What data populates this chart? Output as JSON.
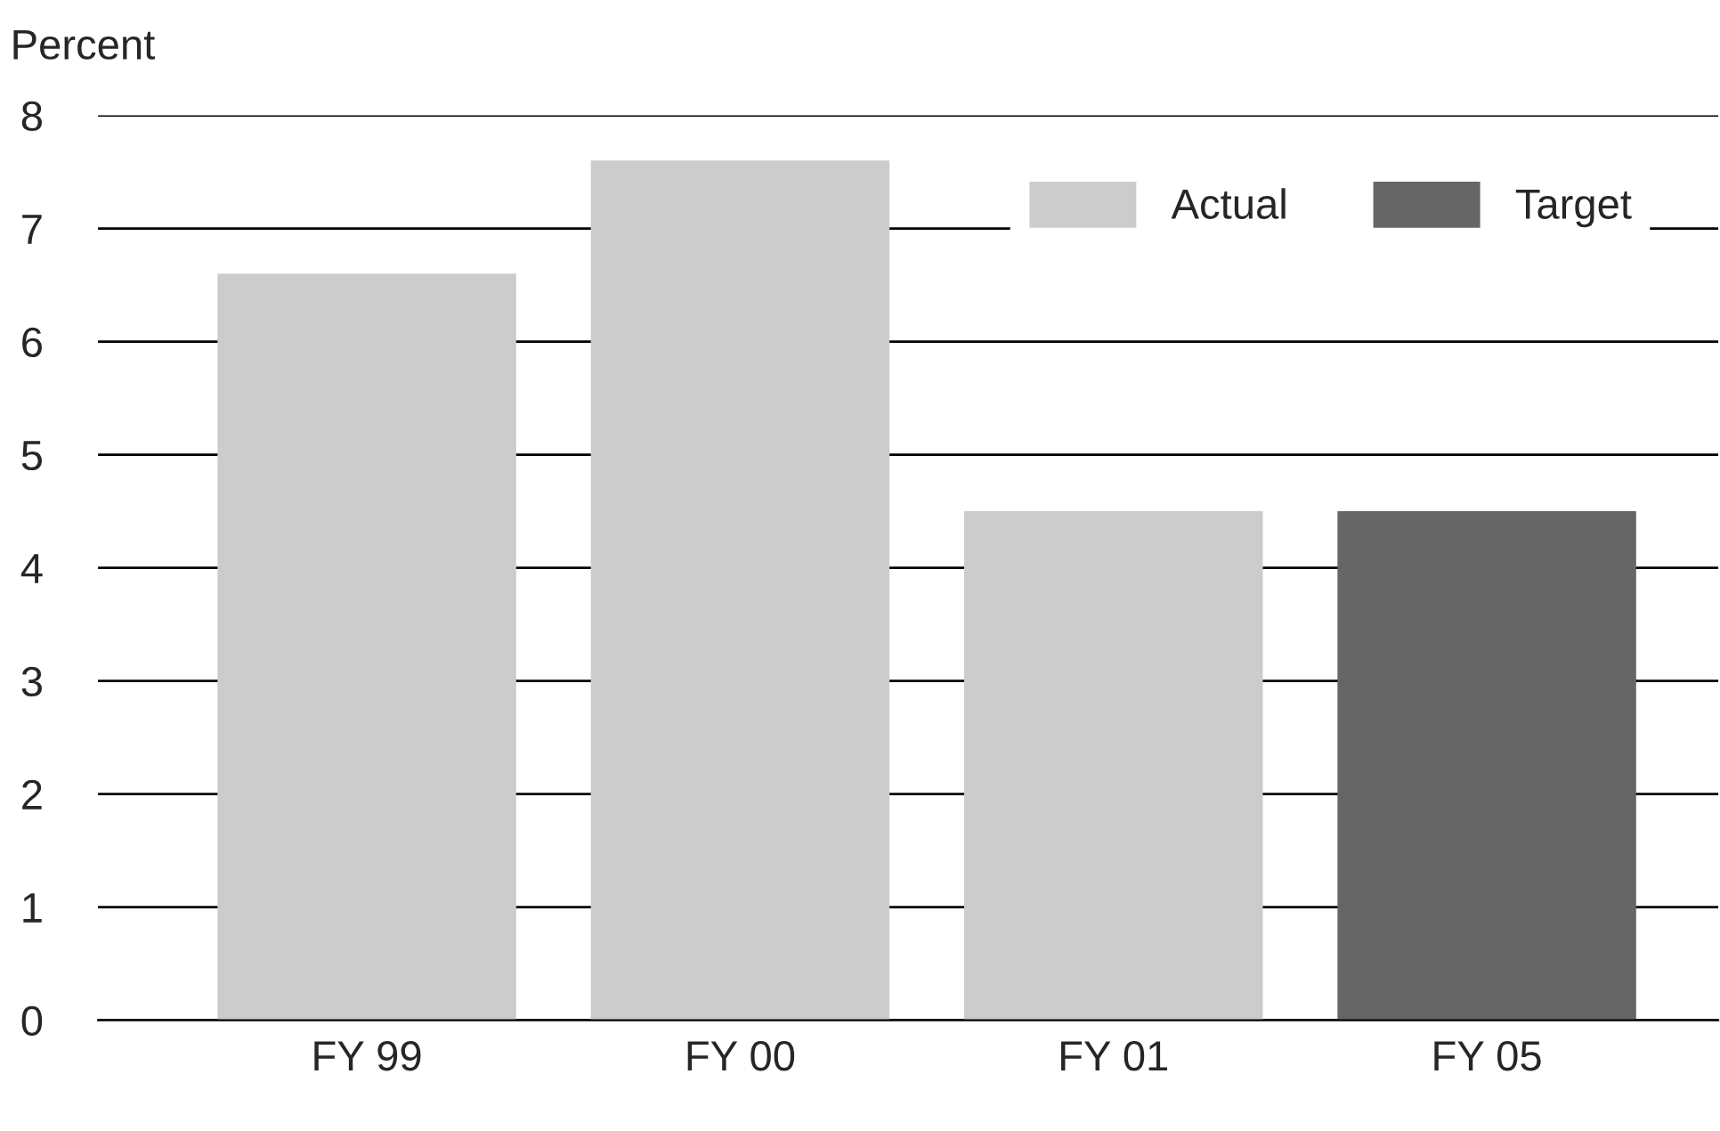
{
  "chart_data": {
    "type": "bar",
    "ylabel": "Percent",
    "categories": [
      "FY 99",
      "FY 00",
      "FY 01",
      "FY 05"
    ],
    "series": [
      {
        "name": "Actual",
        "color": "#cccccc",
        "values": [
          6.6,
          7.6,
          4.5,
          null
        ]
      },
      {
        "name": "Target",
        "color": "#666666",
        "values": [
          null,
          null,
          null,
          4.5
        ]
      }
    ],
    "ylim": [
      0,
      8
    ],
    "yticks": [
      0,
      1,
      2,
      3,
      4,
      5,
      6,
      7,
      8
    ],
    "grid": "y",
    "legend": "top right"
  }
}
